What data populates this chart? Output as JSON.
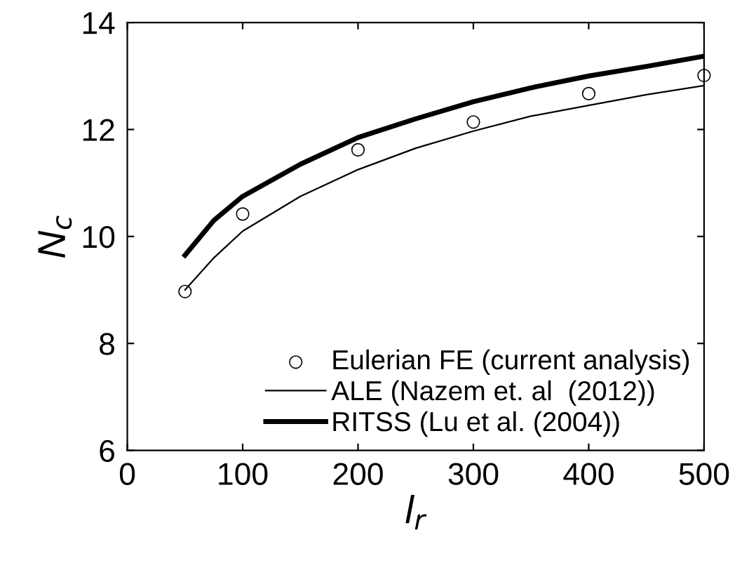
{
  "chart_data": {
    "type": "line",
    "xlabel": "l$_{r}$",
    "ylabel": "N$_{c}$",
    "xlim": [
      0,
      500
    ],
    "ylim": [
      6,
      14
    ],
    "xticks": [
      0,
      100,
      200,
      300,
      400,
      500
    ],
    "yticks": [
      6,
      8,
      10,
      12,
      14
    ],
    "grid": false,
    "legend": "bottom right",
    "series": [
      {
        "name": "Eulerian FE (current analysis)",
        "type": "scatter",
        "marker": "circle",
        "color": "#000000",
        "x": [
          50,
          100,
          200,
          300,
          400,
          500
        ],
        "values": [
          8.97,
          10.42,
          11.62,
          12.14,
          12.67,
          13.01
        ]
      },
      {
        "name": "ALE (Nazem et. al  (2012))",
        "color": "#000000",
        "x": [
          50,
          75,
          100,
          150,
          200,
          250,
          300,
          350,
          400,
          450,
          500
        ],
        "values": [
          9.0,
          9.6,
          10.1,
          10.75,
          11.25,
          11.65,
          11.97,
          12.25,
          12.45,
          12.65,
          12.82
        ]
      },
      {
        "name": "RITSS (Lu et al. (2004))",
        "color": "#000000",
        "x": [
          50,
          75,
          100,
          150,
          200,
          250,
          300,
          350,
          400,
          450,
          500
        ],
        "values": [
          9.65,
          10.3,
          10.75,
          11.35,
          11.85,
          12.2,
          12.52,
          12.78,
          13.0,
          13.18,
          13.37
        ]
      }
    ]
  }
}
